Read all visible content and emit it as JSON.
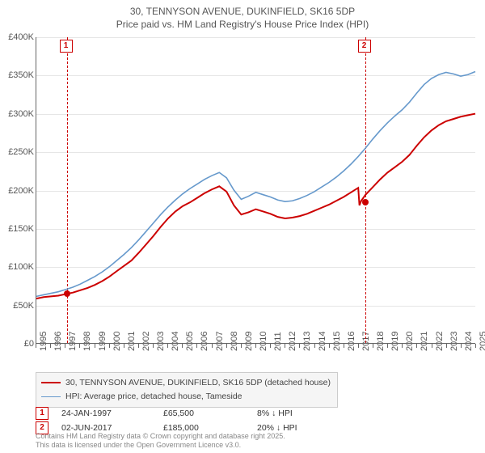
{
  "title_line1": "30, TENNYSON AVENUE, DUKINFIELD, SK16 5DP",
  "title_line2": "Price paid vs. HM Land Registry's House Price Index (HPI)",
  "chart": {
    "type": "line",
    "background_color": "#ffffff",
    "grid_color": "#e6e6e6",
    "axis_color": "#666666",
    "label_color": "#555555",
    "label_fontsize": 11,
    "ylim": [
      0,
      400000
    ],
    "ytick_step": 50000,
    "ylabels": [
      "£0",
      "£50K",
      "£100K",
      "£150K",
      "£200K",
      "£250K",
      "£300K",
      "£350K",
      "£400K"
    ],
    "xlim": [
      1995,
      2025
    ],
    "xlabels": [
      "1995",
      "1996",
      "1997",
      "1998",
      "1999",
      "2000",
      "2001",
      "2002",
      "2003",
      "2004",
      "2005",
      "2006",
      "2007",
      "2008",
      "2009",
      "2010",
      "2011",
      "2012",
      "2013",
      "2014",
      "2015",
      "2016",
      "2017",
      "2018",
      "2019",
      "2020",
      "2021",
      "2022",
      "2023",
      "2024",
      "2025"
    ],
    "series": [
      {
        "name": "price_paid",
        "color": "#cc0000",
        "width": 2,
        "points": [
          [
            1995,
            58000
          ],
          [
            1995.5,
            60000
          ],
          [
            1996,
            61000
          ],
          [
            1996.5,
            62000
          ],
          [
            1997,
            64000
          ],
          [
            1997.5,
            66000
          ],
          [
            1998,
            69000
          ],
          [
            1998.5,
            72000
          ],
          [
            1999,
            76000
          ],
          [
            1999.5,
            81000
          ],
          [
            2000,
            87000
          ],
          [
            2000.5,
            94000
          ],
          [
            2001,
            101000
          ],
          [
            2001.5,
            108000
          ],
          [
            2002,
            118000
          ],
          [
            2002.5,
            129000
          ],
          [
            2003,
            140000
          ],
          [
            2003.5,
            152000
          ],
          [
            2004,
            163000
          ],
          [
            2004.5,
            172000
          ],
          [
            2005,
            179000
          ],
          [
            2005.5,
            184000
          ],
          [
            2006,
            190000
          ],
          [
            2006.5,
            196000
          ],
          [
            2007,
            201000
          ],
          [
            2007.5,
            205000
          ],
          [
            2008,
            198000
          ],
          [
            2008.5,
            180000
          ],
          [
            2009,
            168000
          ],
          [
            2009.5,
            171000
          ],
          [
            2010,
            175000
          ],
          [
            2010.5,
            172000
          ],
          [
            2011,
            169000
          ],
          [
            2011.5,
            165000
          ],
          [
            2012,
            163000
          ],
          [
            2012.5,
            164000
          ],
          [
            2013,
            166000
          ],
          [
            2013.5,
            169000
          ],
          [
            2014,
            173000
          ],
          [
            2014.5,
            177000
          ],
          [
            2015,
            181000
          ],
          [
            2015.5,
            186000
          ],
          [
            2016,
            191000
          ],
          [
            2016.5,
            197000
          ],
          [
            2017,
            203000
          ],
          [
            2017.08,
            180000
          ],
          [
            2017.2,
            186000
          ],
          [
            2017.5,
            194000
          ],
          [
            2018,
            204000
          ],
          [
            2018.5,
            214000
          ],
          [
            2019,
            223000
          ],
          [
            2019.5,
            230000
          ],
          [
            2020,
            237000
          ],
          [
            2020.5,
            246000
          ],
          [
            2021,
            258000
          ],
          [
            2021.5,
            269000
          ],
          [
            2022,
            278000
          ],
          [
            2022.5,
            285000
          ],
          [
            2023,
            290000
          ],
          [
            2023.5,
            293000
          ],
          [
            2024,
            296000
          ],
          [
            2024.5,
            298000
          ],
          [
            2025,
            300000
          ]
        ]
      },
      {
        "name": "hpi",
        "color": "#6699cc",
        "width": 1.6,
        "points": [
          [
            1995,
            61000
          ],
          [
            1995.5,
            63000
          ],
          [
            1996,
            65000
          ],
          [
            1996.5,
            67000
          ],
          [
            1997,
            70000
          ],
          [
            1997.5,
            73000
          ],
          [
            1998,
            77000
          ],
          [
            1998.5,
            82000
          ],
          [
            1999,
            87000
          ],
          [
            1999.5,
            93000
          ],
          [
            2000,
            100000
          ],
          [
            2000.5,
            108000
          ],
          [
            2001,
            116000
          ],
          [
            2001.5,
            125000
          ],
          [
            2002,
            135000
          ],
          [
            2002.5,
            146000
          ],
          [
            2003,
            157000
          ],
          [
            2003.5,
            168000
          ],
          [
            2004,
            178000
          ],
          [
            2004.5,
            187000
          ],
          [
            2005,
            195000
          ],
          [
            2005.5,
            202000
          ],
          [
            2006,
            208000
          ],
          [
            2006.5,
            214000
          ],
          [
            2007,
            219000
          ],
          [
            2007.5,
            223000
          ],
          [
            2008,
            216000
          ],
          [
            2008.5,
            200000
          ],
          [
            2009,
            188000
          ],
          [
            2009.5,
            192000
          ],
          [
            2010,
            197000
          ],
          [
            2010.5,
            194000
          ],
          [
            2011,
            191000
          ],
          [
            2011.5,
            187000
          ],
          [
            2012,
            185000
          ],
          [
            2012.5,
            186000
          ],
          [
            2013,
            189000
          ],
          [
            2013.5,
            193000
          ],
          [
            2014,
            198000
          ],
          [
            2014.5,
            204000
          ],
          [
            2015,
            210000
          ],
          [
            2015.5,
            217000
          ],
          [
            2016,
            225000
          ],
          [
            2016.5,
            234000
          ],
          [
            2017,
            244000
          ],
          [
            2017.5,
            255000
          ],
          [
            2018,
            267000
          ],
          [
            2018.5,
            278000
          ],
          [
            2019,
            288000
          ],
          [
            2019.5,
            297000
          ],
          [
            2020,
            305000
          ],
          [
            2020.5,
            315000
          ],
          [
            2021,
            327000
          ],
          [
            2021.5,
            338000
          ],
          [
            2022,
            346000
          ],
          [
            2022.5,
            351000
          ],
          [
            2023,
            354000
          ],
          [
            2023.5,
            352000
          ],
          [
            2024,
            349000
          ],
          [
            2024.5,
            351000
          ],
          [
            2025,
            355000
          ]
        ]
      }
    ],
    "markers": [
      {
        "n": "1",
        "x": 1997.07,
        "y": 65500,
        "date": "24-JAN-1997",
        "price": "£65,500",
        "delta": "8% ↓ HPI"
      },
      {
        "n": "2",
        "x": 2017.42,
        "y": 185000,
        "date": "02-JUN-2017",
        "price": "£185,000",
        "delta": "20% ↓ HPI"
      }
    ]
  },
  "legend": {
    "items": [
      {
        "color": "#cc0000",
        "label": "30, TENNYSON AVENUE, DUKINFIELD, SK16 5DP (detached house)",
        "width": 2
      },
      {
        "color": "#6699cc",
        "label": "HPI: Average price, detached house, Tameside",
        "width": 1.6
      }
    ]
  },
  "footer_line1": "Contains HM Land Registry data © Crown copyright and database right 2025.",
  "footer_line2": "This data is licensed under the Open Government Licence v3.0."
}
